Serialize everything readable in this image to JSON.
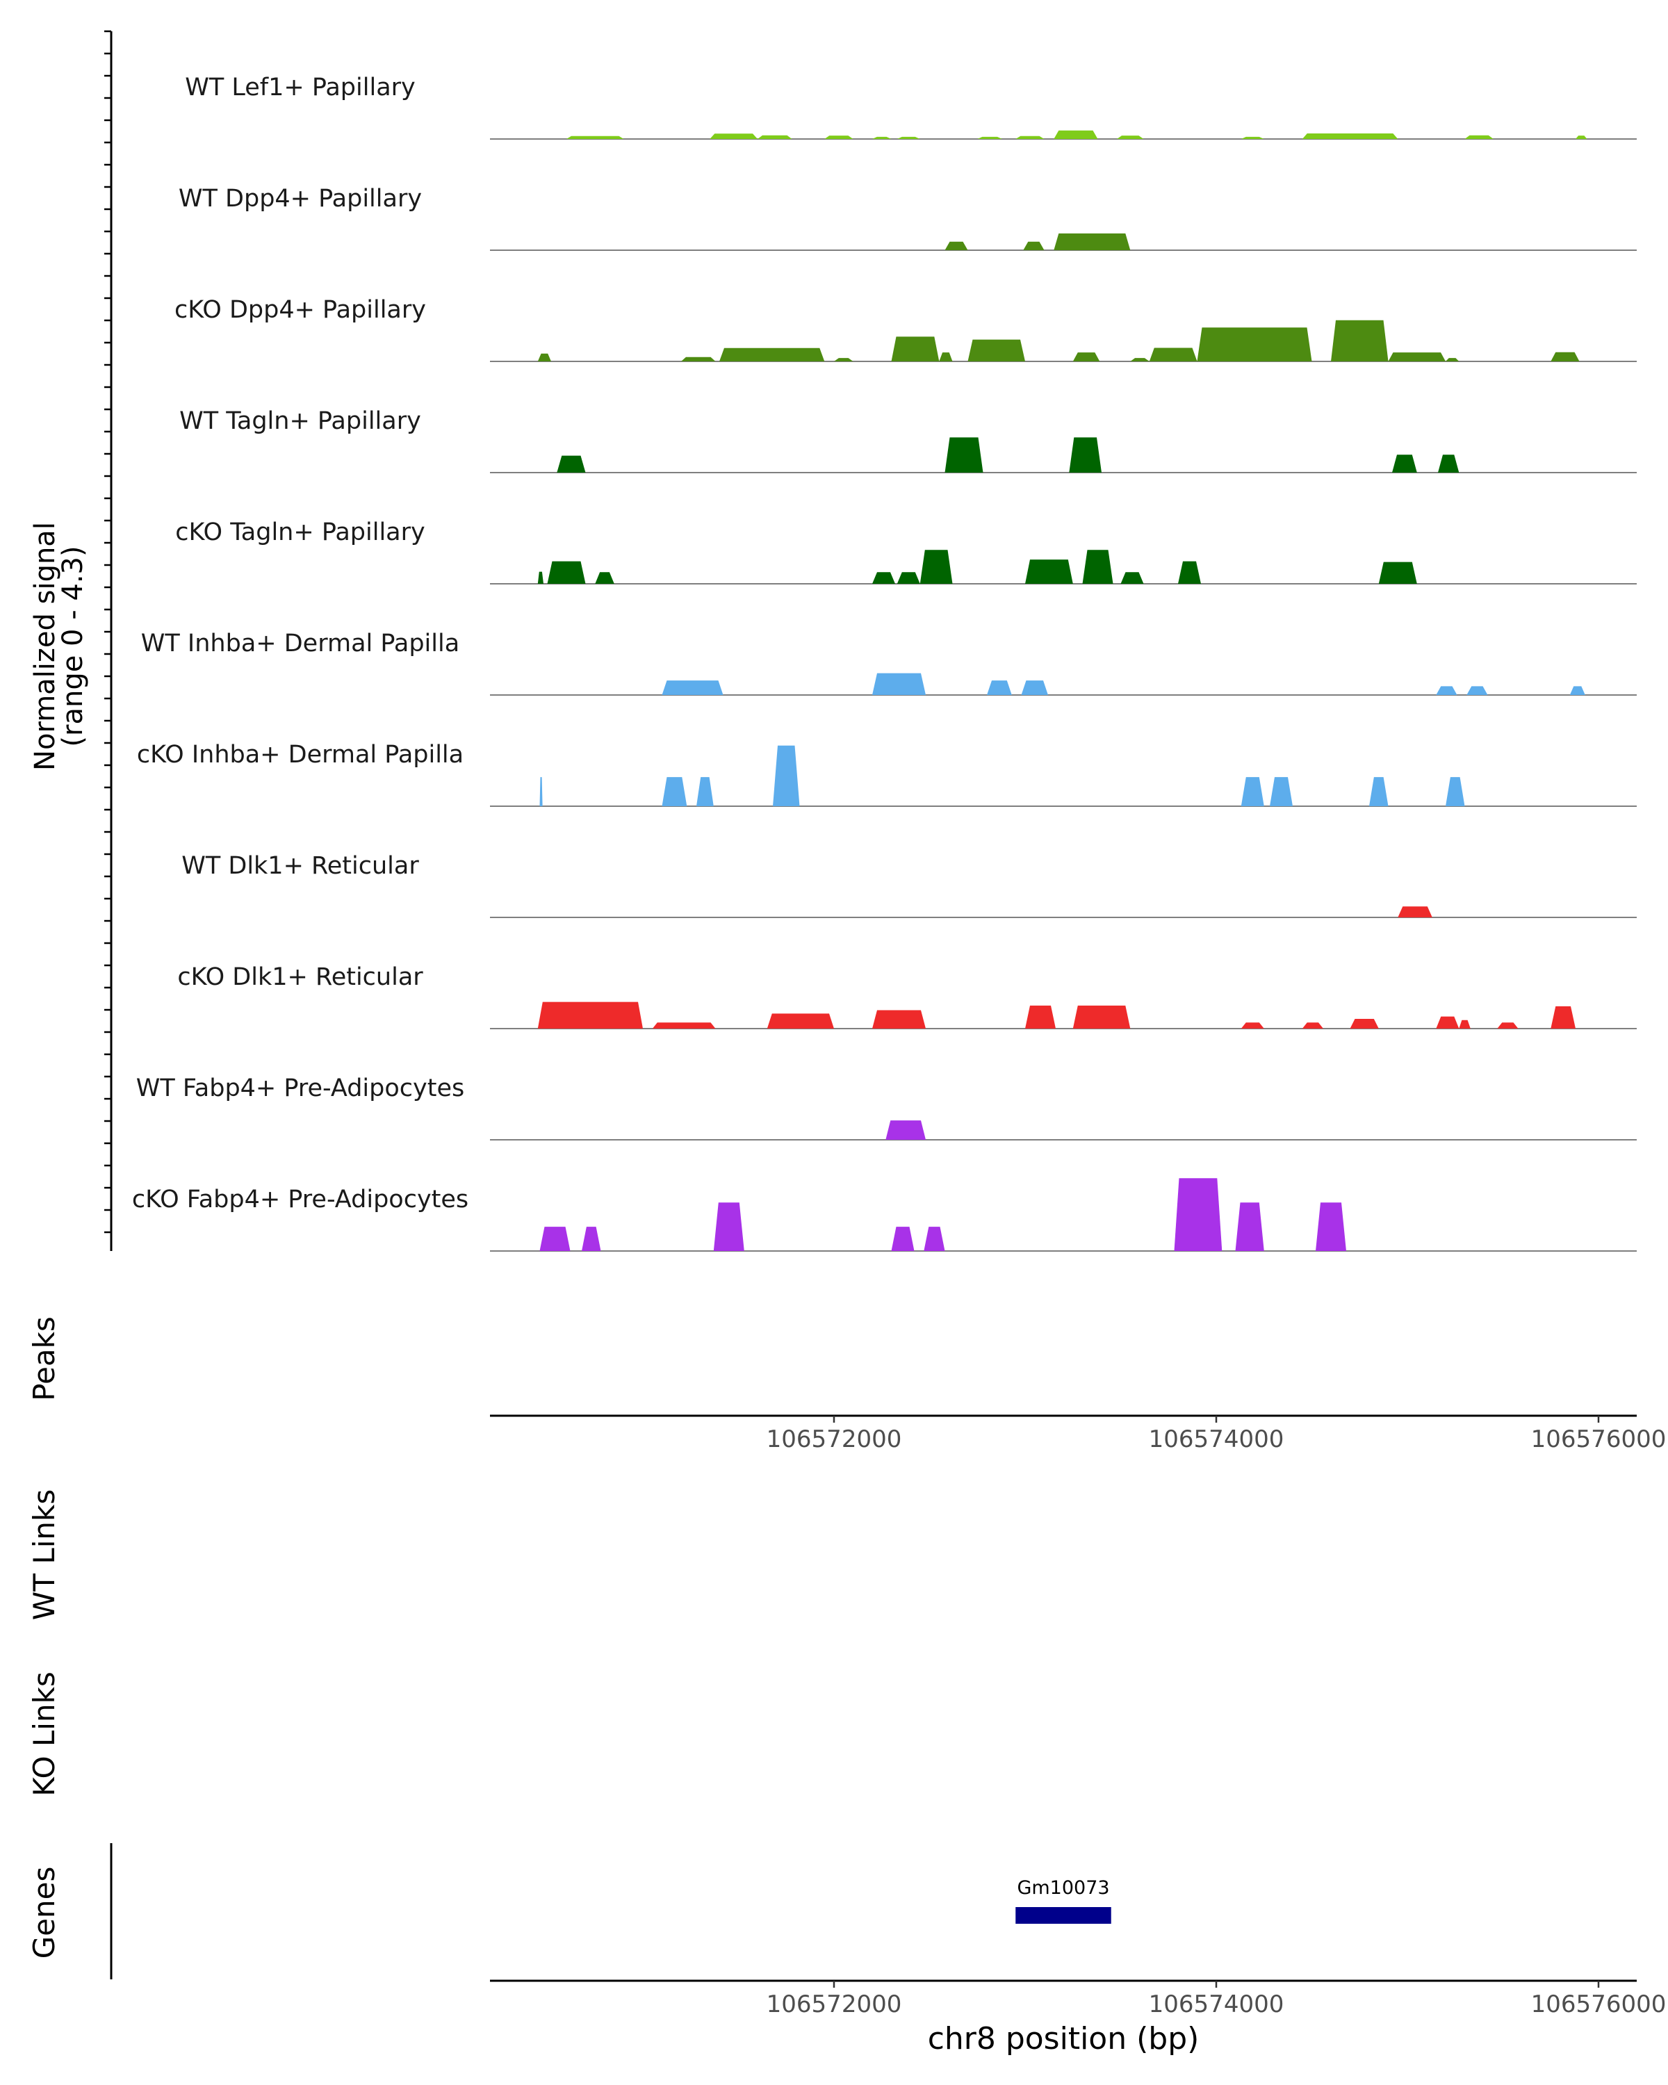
{
  "chart_data": {
    "type": "area",
    "title": "",
    "ylabel_line1": "Normalized signal",
    "ylabel_line2": "(range 0 - 4.3)",
    "ylim": [
      0,
      4.3
    ],
    "xlabel": "chr8 position (bp)",
    "xlim": [
      106570200,
      106576200
    ],
    "xticks": [
      {
        "value": 106572000,
        "label": "106572000"
      },
      {
        "value": 106574000,
        "label": "106574000"
      },
      {
        "value": 106576000,
        "label": "106576000"
      }
    ],
    "tracks": [
      {
        "name": "WT Lef1+ Papillary",
        "color": "#7FCC1A",
        "peaks": [
          [
            106570600,
            106570900,
            0.12
          ],
          [
            106571350,
            106571600,
            0.22
          ],
          [
            106571600,
            106571780,
            0.15
          ],
          [
            106571950,
            106572100,
            0.14
          ],
          [
            106572200,
            106572300,
            0.09
          ],
          [
            106572330,
            106572450,
            0.09
          ],
          [
            106572750,
            106572880,
            0.09
          ],
          [
            106572950,
            106573100,
            0.12
          ],
          [
            106573150,
            106573380,
            0.35
          ],
          [
            106573480,
            106573620,
            0.14
          ],
          [
            106574130,
            106574250,
            0.09
          ],
          [
            106574450,
            106574950,
            0.23
          ],
          [
            106575300,
            106575450,
            0.15
          ],
          [
            106575880,
            106575940,
            0.14
          ]
        ]
      },
      {
        "name": "WT Dpp4+ Papillary",
        "color": "#4D8B11",
        "peaks": [
          [
            106572580,
            106572700,
            0.35
          ],
          [
            106572990,
            106573100,
            0.35
          ],
          [
            106573150,
            106573550,
            0.69
          ]
        ]
      },
      {
        "name": "cKO Dpp4+ Papillary",
        "color": "#4D8B11",
        "peaks": [
          [
            106570450,
            106570520,
            0.32
          ],
          [
            106571200,
            106571380,
            0.18
          ],
          [
            106571400,
            106571950,
            0.55
          ],
          [
            106572000,
            106572100,
            0.14
          ],
          [
            106572300,
            106572550,
            1.02
          ],
          [
            106572550,
            106572620,
            0.37
          ],
          [
            106572700,
            106573000,
            0.9
          ],
          [
            106573250,
            106573390,
            0.37
          ],
          [
            106573550,
            106573650,
            0.14
          ],
          [
            106573650,
            106573900,
            0.56
          ],
          [
            106573900,
            106574500,
            1.4
          ],
          [
            106574600,
            106574900,
            1.7
          ],
          [
            106574900,
            106575200,
            0.37
          ],
          [
            106575200,
            106575270,
            0.14
          ],
          [
            106575750,
            106575900,
            0.38
          ]
        ]
      },
      {
        "name": "WT Tagln+ Papillary",
        "color": "#006400",
        "peaks": [
          [
            106570550,
            106570700,
            0.7
          ],
          [
            106572580,
            106572780,
            1.45
          ],
          [
            106573230,
            106573400,
            1.45
          ],
          [
            106574920,
            106575050,
            0.74
          ],
          [
            106575160,
            106575270,
            0.74
          ]
        ]
      },
      {
        "name": "cKO Tagln+ Papillary",
        "color": "#006400",
        "peaks": [
          [
            106570450,
            106570480,
            0.5
          ],
          [
            106570500,
            106570700,
            0.93
          ],
          [
            106570750,
            106570850,
            0.48
          ],
          [
            106572200,
            106572320,
            0.48
          ],
          [
            106572330,
            106572450,
            0.48
          ],
          [
            106572450,
            106572620,
            1.4
          ],
          [
            106573000,
            106573250,
            1.0
          ],
          [
            106573300,
            106573460,
            1.4
          ],
          [
            106573500,
            106573620,
            0.48
          ],
          [
            106573800,
            106573920,
            0.93
          ],
          [
            106574850,
            106575050,
            0.9
          ]
        ]
      },
      {
        "name": "WT Inhba+ Dermal Papilla",
        "color": "#5DADEC",
        "peaks": [
          [
            106571100,
            106571420,
            0.6
          ],
          [
            106572200,
            106572480,
            0.9
          ],
          [
            106572800,
            106572930,
            0.6
          ],
          [
            106572980,
            106573120,
            0.6
          ],
          [
            106575150,
            106575260,
            0.36
          ],
          [
            106575310,
            106575420,
            0.36
          ],
          [
            106575850,
            106575930,
            0.36
          ]
        ]
      },
      {
        "name": "cKO Inhba+ Dermal Papilla",
        "color": "#5DADEC",
        "peaks": [
          [
            106570460,
            106570475,
            1.2
          ],
          [
            106571100,
            106571230,
            1.2
          ],
          [
            106571280,
            106571370,
            1.2
          ],
          [
            106571680,
            106571820,
            2.5
          ],
          [
            106574130,
            106574250,
            1.2
          ],
          [
            106574280,
            106574400,
            1.2
          ],
          [
            106574800,
            106574900,
            1.2
          ],
          [
            106575200,
            106575300,
            1.2
          ]
        ]
      },
      {
        "name": "WT Dlk1+ Reticular",
        "color": "#EE2A2A",
        "peaks": [
          [
            106574950,
            106575130,
            0.45
          ]
        ]
      },
      {
        "name": "cKO Dlk1+ Reticular",
        "color": "#EE2A2A",
        "peaks": [
          [
            106570450,
            106571000,
            1.1
          ],
          [
            106571050,
            106571380,
            0.25
          ],
          [
            106571650,
            106572000,
            0.62
          ],
          [
            106572200,
            106572480,
            0.76
          ],
          [
            106573000,
            106573160,
            0.95
          ],
          [
            106573250,
            106573550,
            0.95
          ],
          [
            106574130,
            106574250,
            0.25
          ],
          [
            106574450,
            106574560,
            0.25
          ],
          [
            106574700,
            106574850,
            0.4
          ],
          [
            106575150,
            106575270,
            0.5
          ],
          [
            106575270,
            106575330,
            0.35
          ],
          [
            106575470,
            106575580,
            0.25
          ],
          [
            106575750,
            106575880,
            0.92
          ]
        ]
      },
      {
        "name": "WT Fabp4+ Pre-Adipocytes",
        "color": "#A832E8",
        "peaks": [
          [
            106572270,
            106572480,
            0.8
          ]
        ]
      },
      {
        "name": "cKO Fabp4+ Pre-Adipocytes",
        "color": "#A832E8",
        "peaks": [
          [
            106570460,
            106570620,
            1.0
          ],
          [
            106570680,
            106570780,
            1.0
          ],
          [
            106571370,
            106571530,
            2.0
          ],
          [
            106572300,
            106572420,
            1.0
          ],
          [
            106572470,
            106572580,
            1.0
          ],
          [
            106573780,
            106574030,
            3.0
          ],
          [
            106574100,
            106574250,
            2.0
          ],
          [
            106574520,
            106574680,
            2.0
          ]
        ]
      }
    ],
    "extra_rows": [
      {
        "label": "Peaks"
      },
      {
        "label": "WT Links"
      },
      {
        "label": "KO Links"
      },
      {
        "label": "Genes"
      }
    ],
    "genes": [
      {
        "name": "Gm10073",
        "start": 106572950,
        "end": 106573450,
        "color": "#00008B"
      }
    ]
  }
}
